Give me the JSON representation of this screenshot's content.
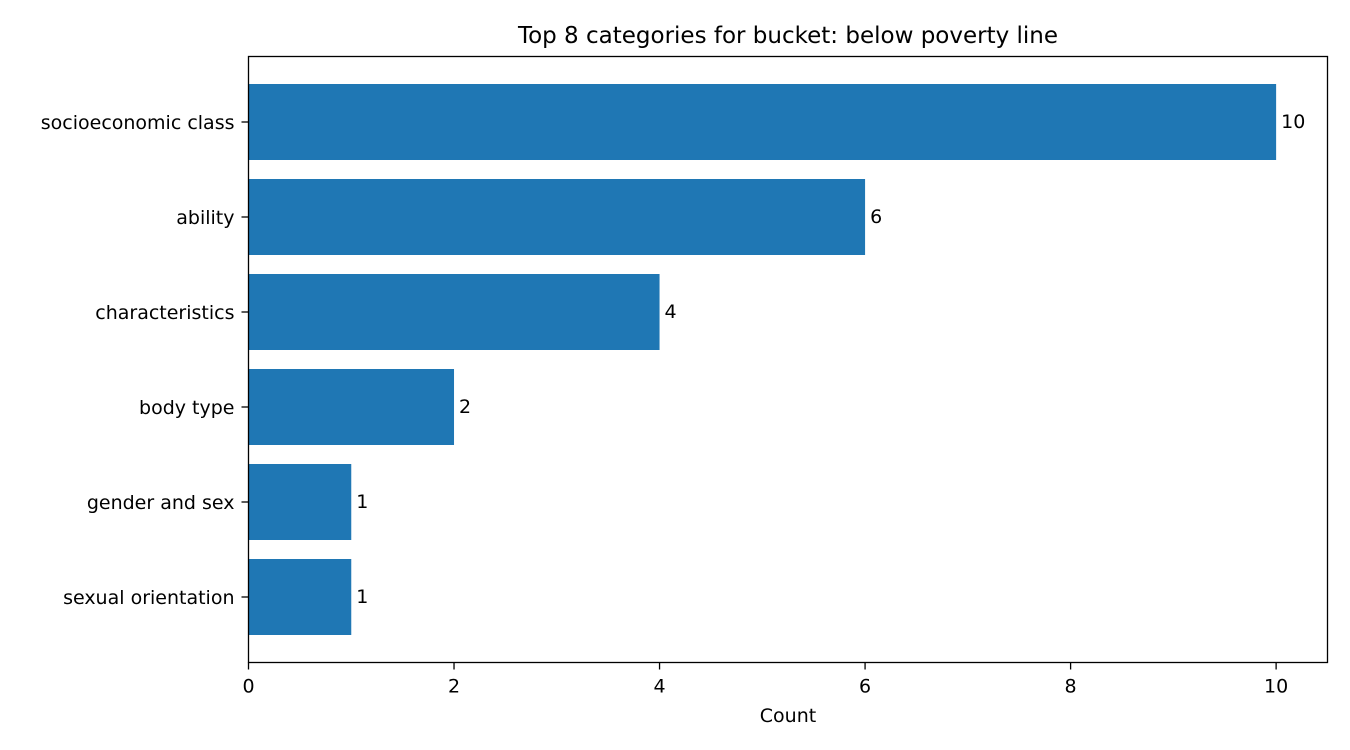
{
  "chart_data": {
    "type": "bar",
    "orientation": "horizontal",
    "title": "Top 8 categories for bucket: below poverty line",
    "xlabel": "Count",
    "ylabel": "",
    "categories": [
      "socioeconomic class",
      "ability",
      "characteristics",
      "body type",
      "gender and sex",
      "sexual orientation"
    ],
    "values": [
      10,
      6,
      4,
      2,
      1,
      1
    ],
    "value_labels": [
      "10",
      "6",
      "4",
      "2",
      "1",
      "1"
    ],
    "xlim": [
      0,
      10.5
    ],
    "xticks": [
      0,
      2,
      4,
      6,
      8,
      10
    ],
    "xtick_labels": [
      "0",
      "2",
      "4",
      "6",
      "8",
      "10"
    ],
    "bar_color": "#1f77b4",
    "grid": false,
    "legend": "none"
  }
}
